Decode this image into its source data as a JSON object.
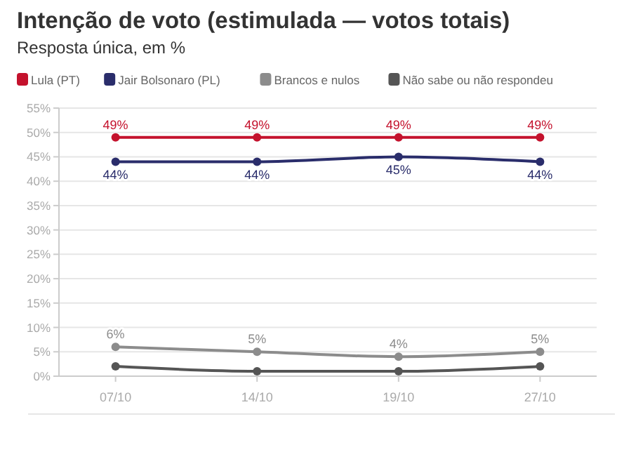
{
  "chart_data": {
    "type": "line",
    "title": "Intenção de voto (estimulada — votos totais)",
    "subtitle": "Resposta única, em %",
    "categories": [
      "07/10",
      "14/10",
      "19/10",
      "27/10"
    ],
    "ylim": [
      0,
      55
    ],
    "yticks": [
      {
        "value": 0,
        "label": "0%"
      },
      {
        "value": 5,
        "label": "5%"
      },
      {
        "value": 10,
        "label": "10%"
      },
      {
        "value": 15,
        "label": "15%"
      },
      {
        "value": 20,
        "label": "20%"
      },
      {
        "value": 25,
        "label": "25%"
      },
      {
        "value": 30,
        "label": "30%"
      },
      {
        "value": 35,
        "label": "35%"
      },
      {
        "value": 40,
        "label": "40%"
      },
      {
        "value": 45,
        "label": "45%"
      },
      {
        "value": 50,
        "label": "50%"
      },
      {
        "value": 55,
        "label": "55%"
      }
    ],
    "grid": "y",
    "legend": "top left",
    "marker": "circle",
    "series": [
      {
        "name": "Lula (PT)",
        "color": "#c4122d",
        "values": [
          49,
          49,
          49,
          49
        ],
        "value_labels": [
          "49%",
          "49%",
          "49%",
          "49%"
        ]
      },
      {
        "name": "Jair Bolsonaro (PL)",
        "color": "#2a2d6b",
        "values": [
          44,
          44,
          45,
          44
        ],
        "value_labels": [
          "44%",
          "44%",
          "45%",
          "44%"
        ]
      },
      {
        "name": "Brancos e nulos",
        "color": "#8c8c8c",
        "values": [
          6,
          5,
          4,
          5
        ],
        "value_labels": [
          "6%",
          "5%",
          "4%",
          "5%"
        ]
      },
      {
        "name": "Não sabe ou não respondeu",
        "color": "#555555",
        "values": [
          2,
          1,
          1,
          2
        ]
      }
    ]
  }
}
